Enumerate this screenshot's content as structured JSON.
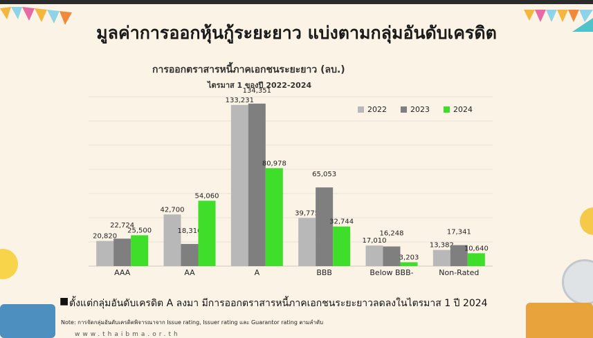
{
  "title": "มูลค่าการออกหุ้นกู้ระยะยาว แบ่งตามกลุ่มอันดับเครดิต",
  "chart_title": "การออกตราสารหนี้ภาคเอกชนระยะยาว (ลบ.)",
  "chart_subtitle": "ไตรมาส 1 ของปี 2022-2024",
  "footnote": "ตั้งแต่กลุ่มอันดับเครดิต A ลงมา มีการออกตราสารหนี้ภาคเอกชนระยะยาวลดลงในไตรมาส 1 ปี 2024",
  "note": "Note: การจัดกลุ่มอันดับเครดิตพิจารณาจาก Issue rating, Issuer rating และ Guarantor rating ตามลำดับ",
  "website": "www.thaibma.or.th",
  "colors": {
    "s2022": "#b8b8b8",
    "s2023": "#7f7f7f",
    "s2024": "#3ede2a"
  },
  "chart_data": {
    "type": "bar",
    "categories": [
      "AAA",
      "AA",
      "A",
      "BBB",
      "Below BBB-",
      "Non-Rated"
    ],
    "series": [
      {
        "name": "2022",
        "values": [
          20820,
          42700,
          133231,
          39775,
          17010,
          13382
        ],
        "labels": [
          "20,820",
          "42,700",
          "133,231",
          "39,775",
          "17,010",
          "13,382"
        ]
      },
      {
        "name": "2023",
        "values": [
          22724,
          18310,
          134351,
          65053,
          16248,
          17341
        ],
        "labels": [
          "22,724",
          "18,310",
          "134,351",
          "65,053",
          "16,248",
          "17,341"
        ]
      },
      {
        "name": "2024",
        "values": [
          25500,
          54060,
          80978,
          32744,
          3203,
          10640
        ],
        "labels": [
          "25,500",
          "54,060",
          "80,978",
          "32,744",
          "3,203",
          "10,640"
        ]
      }
    ],
    "ylim": [
      0,
      140000
    ],
    "grid": true,
    "legend": "top-right"
  }
}
